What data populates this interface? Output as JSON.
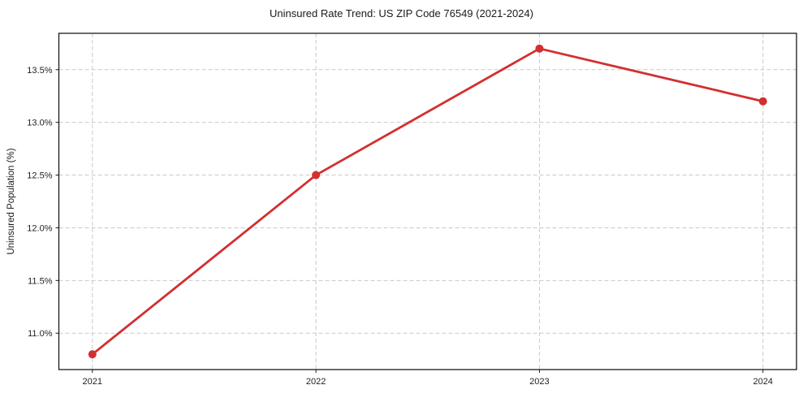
{
  "figure": {
    "title": "Uninsured Rate Trend: US ZIP Code 76549 (2021-2024)"
  },
  "chart_data": {
    "type": "line",
    "title": "Uninsured Rate Trend: US ZIP Code 76549 (2021-2024)",
    "xlabel": "",
    "ylabel": "Uninsured Population (%)",
    "x": [
      2021,
      2022,
      2023,
      2024
    ],
    "x_tick_labels": [
      "2021",
      "2022",
      "2023",
      "2024"
    ],
    "series": [
      {
        "name": "Uninsured rate",
        "values": [
          10.8,
          12.5,
          13.7,
          13.2
        ],
        "color": "#d32f2f"
      }
    ],
    "y_ticks": [
      11.0,
      11.5,
      12.0,
      12.5,
      13.0,
      13.5
    ],
    "y_tick_labels": [
      "11.0%",
      "11.5%",
      "12.0%",
      "12.5%",
      "13.0%",
      "13.5%"
    ],
    "xlim": [
      2020.85,
      2024.15
    ],
    "ylim": [
      10.655,
      13.845
    ],
    "grid": true,
    "grid_style": "dashed",
    "legend": "none",
    "colors": {
      "line": "#d32f2f",
      "grid": "#c9c9c9",
      "spine": "#1a1a1a",
      "text": "#1f1f1f",
      "background": "#ffffff"
    }
  }
}
